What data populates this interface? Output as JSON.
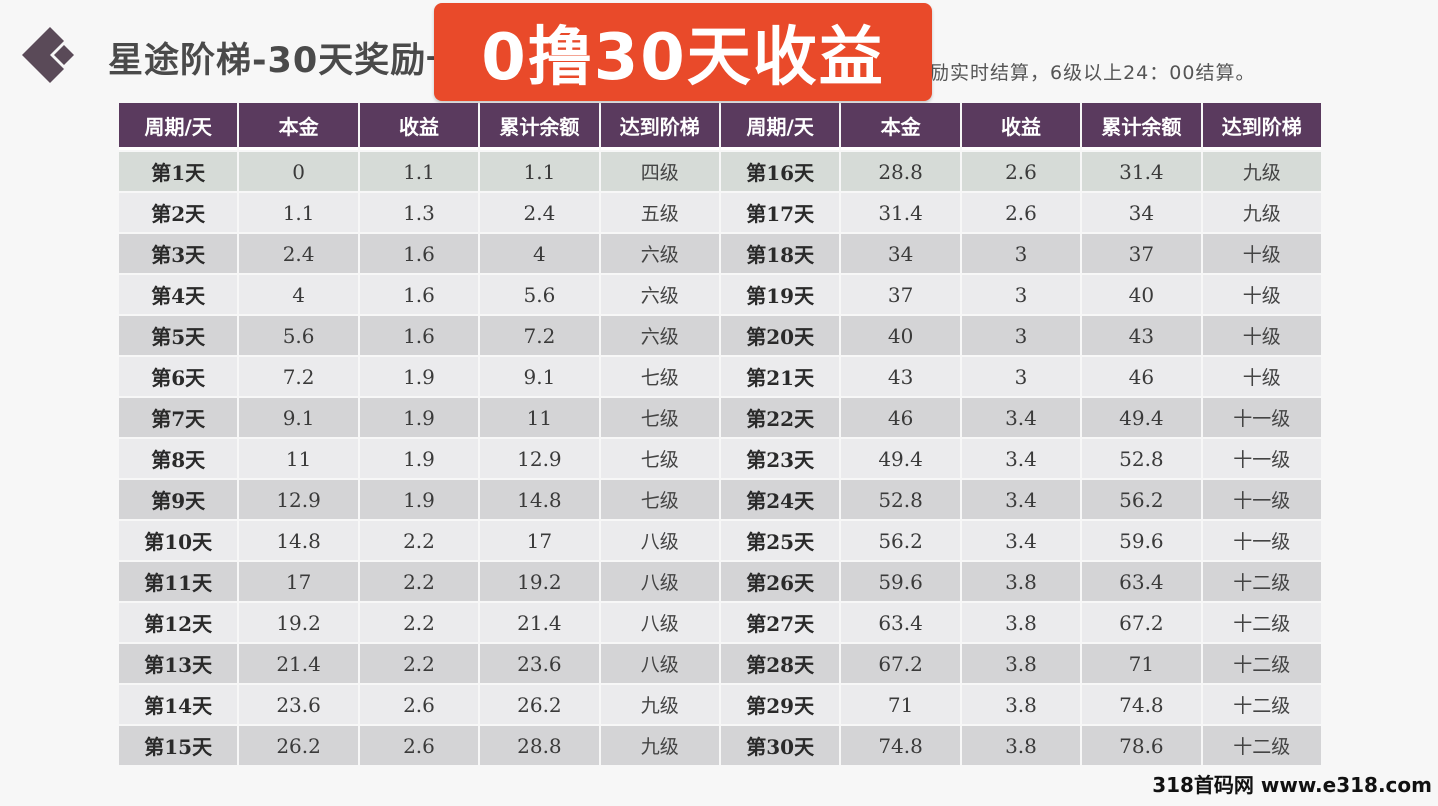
{
  "header": {
    "logo_icon": "diamond-chevron-logo-icon",
    "title": "星途阶梯-30天奖励一览",
    "banner": "0撸30天收益",
    "subtitle": "奖励实时结算，6级以上24：00结算。"
  },
  "colors": {
    "header_bg": "#5a3a5e",
    "banner_bg": "#e94a2a",
    "row_odd": "#d4d4d6",
    "row_even": "#ebebed"
  },
  "table": {
    "columns": [
      "周期/天",
      "本金",
      "收益",
      "累计余额",
      "达到阶梯",
      "周期/天",
      "本金",
      "收益",
      "累计余额",
      "达到阶梯"
    ],
    "rows": [
      {
        "left": [
          "第1天",
          "0",
          "1.1",
          "1.1",
          "四级"
        ],
        "right": [
          "第16天",
          "28.8",
          "2.6",
          "31.4",
          "九级"
        ]
      },
      {
        "left": [
          "第2天",
          "1.1",
          "1.3",
          "2.4",
          "五级"
        ],
        "right": [
          "第17天",
          "31.4",
          "2.6",
          "34",
          "九级"
        ]
      },
      {
        "left": [
          "第3天",
          "2.4",
          "1.6",
          "4",
          "六级"
        ],
        "right": [
          "第18天",
          "34",
          "3",
          "37",
          "十级"
        ]
      },
      {
        "left": [
          "第4天",
          "4",
          "1.6",
          "5.6",
          "六级"
        ],
        "right": [
          "第19天",
          "37",
          "3",
          "40",
          "十级"
        ]
      },
      {
        "left": [
          "第5天",
          "5.6",
          "1.6",
          "7.2",
          "六级"
        ],
        "right": [
          "第20天",
          "40",
          "3",
          "43",
          "十级"
        ]
      },
      {
        "left": [
          "第6天",
          "7.2",
          "1.9",
          "9.1",
          "七级"
        ],
        "right": [
          "第21天",
          "43",
          "3",
          "46",
          "十级"
        ]
      },
      {
        "left": [
          "第7天",
          "9.1",
          "1.9",
          "11",
          "七级"
        ],
        "right": [
          "第22天",
          "46",
          "3.4",
          "49.4",
          "十一级"
        ]
      },
      {
        "left": [
          "第8天",
          "11",
          "1.9",
          "12.9",
          "七级"
        ],
        "right": [
          "第23天",
          "49.4",
          "3.4",
          "52.8",
          "十一级"
        ]
      },
      {
        "left": [
          "第9天",
          "12.9",
          "1.9",
          "14.8",
          "七级"
        ],
        "right": [
          "第24天",
          "52.8",
          "3.4",
          "56.2",
          "十一级"
        ]
      },
      {
        "left": [
          "第10天",
          "14.8",
          "2.2",
          "17",
          "八级"
        ],
        "right": [
          "第25天",
          "56.2",
          "3.4",
          "59.6",
          "十一级"
        ]
      },
      {
        "left": [
          "第11天",
          "17",
          "2.2",
          "19.2",
          "八级"
        ],
        "right": [
          "第26天",
          "59.6",
          "3.8",
          "63.4",
          "十二级"
        ]
      },
      {
        "left": [
          "第12天",
          "19.2",
          "2.2",
          "21.4",
          "八级"
        ],
        "right": [
          "第27天",
          "63.4",
          "3.8",
          "67.2",
          "十二级"
        ]
      },
      {
        "left": [
          "第13天",
          "21.4",
          "2.2",
          "23.6",
          "八级"
        ],
        "right": [
          "第28天",
          "67.2",
          "3.8",
          "71",
          "十二级"
        ]
      },
      {
        "left": [
          "第14天",
          "23.6",
          "2.6",
          "26.2",
          "九级"
        ],
        "right": [
          "第29天",
          "71",
          "3.8",
          "74.8",
          "十二级"
        ]
      },
      {
        "left": [
          "第15天",
          "26.2",
          "2.6",
          "28.8",
          "九级"
        ],
        "right": [
          "第30天",
          "74.8",
          "3.8",
          "78.6",
          "十二级"
        ]
      }
    ]
  },
  "watermark": "318首码网 www.e318.com"
}
